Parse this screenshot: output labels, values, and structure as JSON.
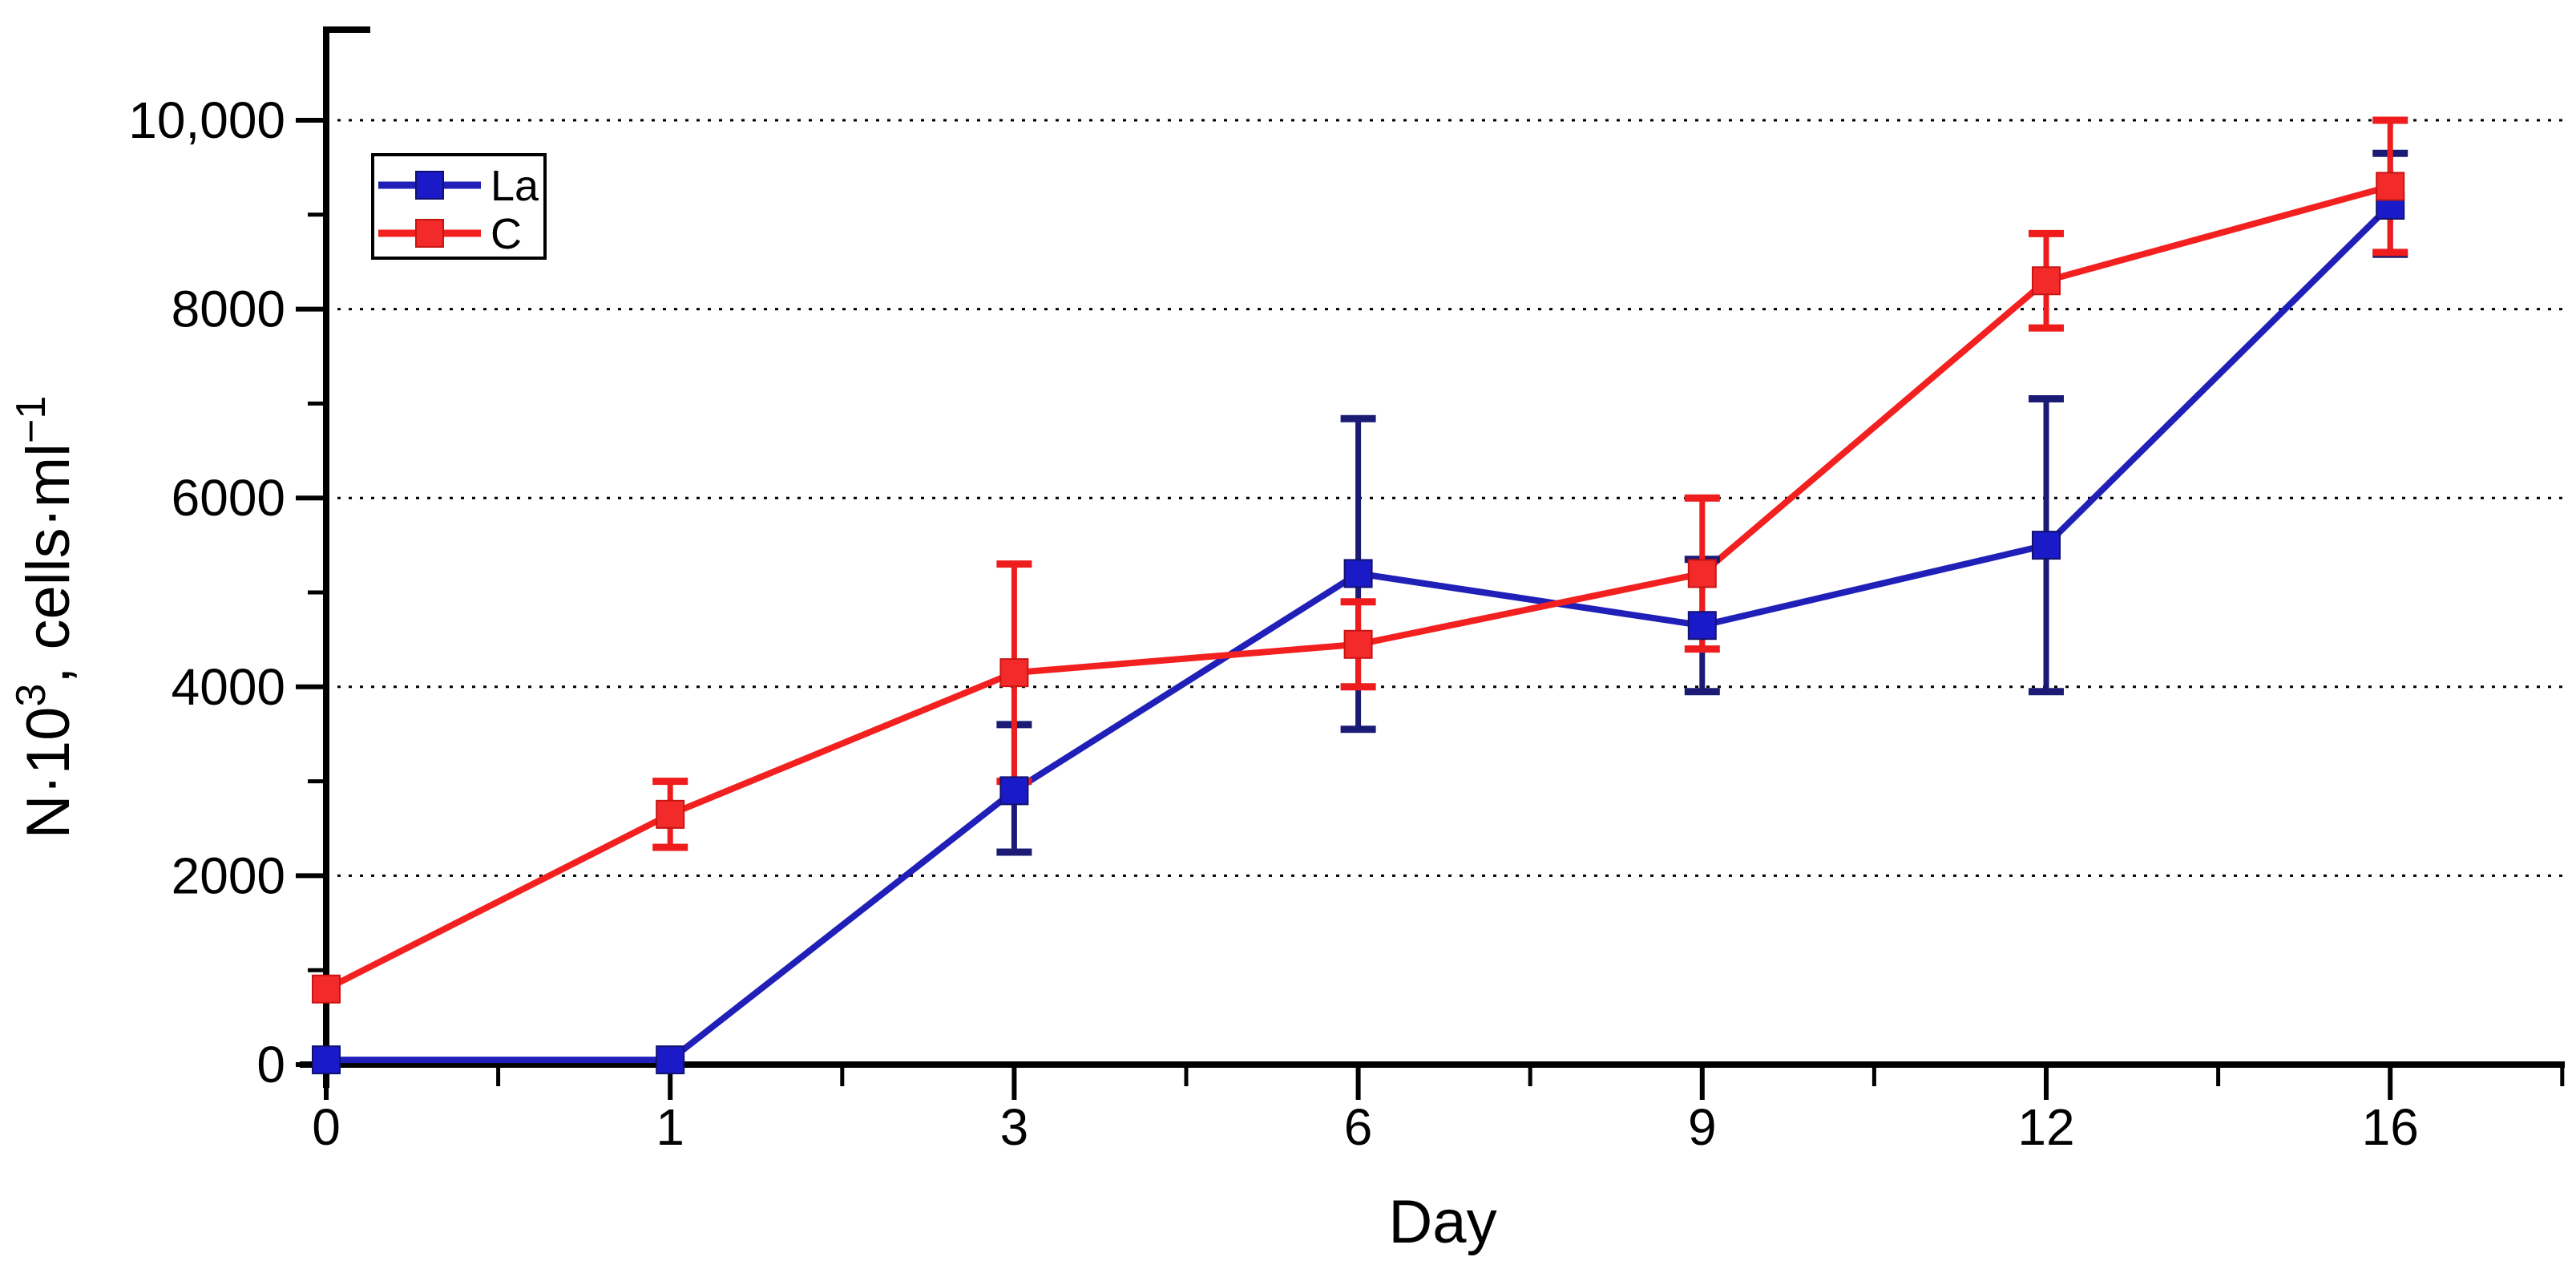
{
  "chart_data": {
    "type": "line",
    "title": "",
    "xlabel": "Day",
    "ylabel": "N·10³, cells·ml⁻¹",
    "ylabel_parts": {
      "base1": "N·10",
      "sup1": "3",
      "base2": ", cells·ml",
      "sup2": "−1"
    },
    "categories": [
      "0",
      "1",
      "3",
      "6",
      "9",
      "12",
      "16"
    ],
    "x_tick_spacing": "equal",
    "y_ticks": [
      {
        "value": 0,
        "label": "0"
      },
      {
        "value": 2000,
        "label": "2000"
      },
      {
        "value": 4000,
        "label": "4000"
      },
      {
        "value": 6000,
        "label": "6000"
      },
      {
        "value": 8000,
        "label": "8000"
      },
      {
        "value": 10000,
        "label": "10,000"
      }
    ],
    "y_minor_ticks": [
      1000,
      3000,
      5000,
      7000,
      9000
    ],
    "ylim": [
      0,
      11000
    ],
    "grid": "dotted horizontal lines at major y ticks",
    "legend_position": "top-left",
    "series": [
      {
        "name": "La",
        "color": "#2020b8",
        "marker_color": "#1a1ac8",
        "marker_edge": "#12126e",
        "error_color": "#1b1b75",
        "values": [
          50,
          50,
          2900,
          5200,
          4650,
          5500,
          9100
        ],
        "err_plus": [
          0,
          0,
          700,
          1640,
          700,
          1550,
          550
        ],
        "err_minus": [
          0,
          0,
          650,
          1650,
          700,
          1550,
          520
        ]
      },
      {
        "name": "C",
        "color": "#f32020",
        "marker_color": "#f32a2a",
        "marker_edge": "#c81414",
        "error_color": "#ee1c1c",
        "values": [
          800,
          2650,
          4150,
          4450,
          5200,
          8300,
          9300
        ],
        "err_plus": [
          0,
          350,
          1150,
          450,
          800,
          500,
          700
        ],
        "err_minus": [
          0,
          350,
          1150,
          450,
          800,
          500,
          700
        ]
      }
    ],
    "axis_color": "#000000",
    "gridline_color": "#000000",
    "background_color": "#ffffff"
  }
}
